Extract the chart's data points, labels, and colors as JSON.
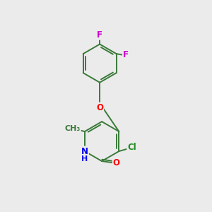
{
  "background_color": "#ebebeb",
  "bond_color": "#3a7a3a",
  "atom_colors": {
    "F": "#cc00cc",
    "O": "#ff0000",
    "N": "#0000ee",
    "Cl": "#228B22",
    "C": "#3a7a3a",
    "H": "#3a7a3a"
  },
  "figsize": [
    3.0,
    3.0
  ],
  "dpi": 100,
  "lw": 1.4,
  "fontsize": 8.5
}
